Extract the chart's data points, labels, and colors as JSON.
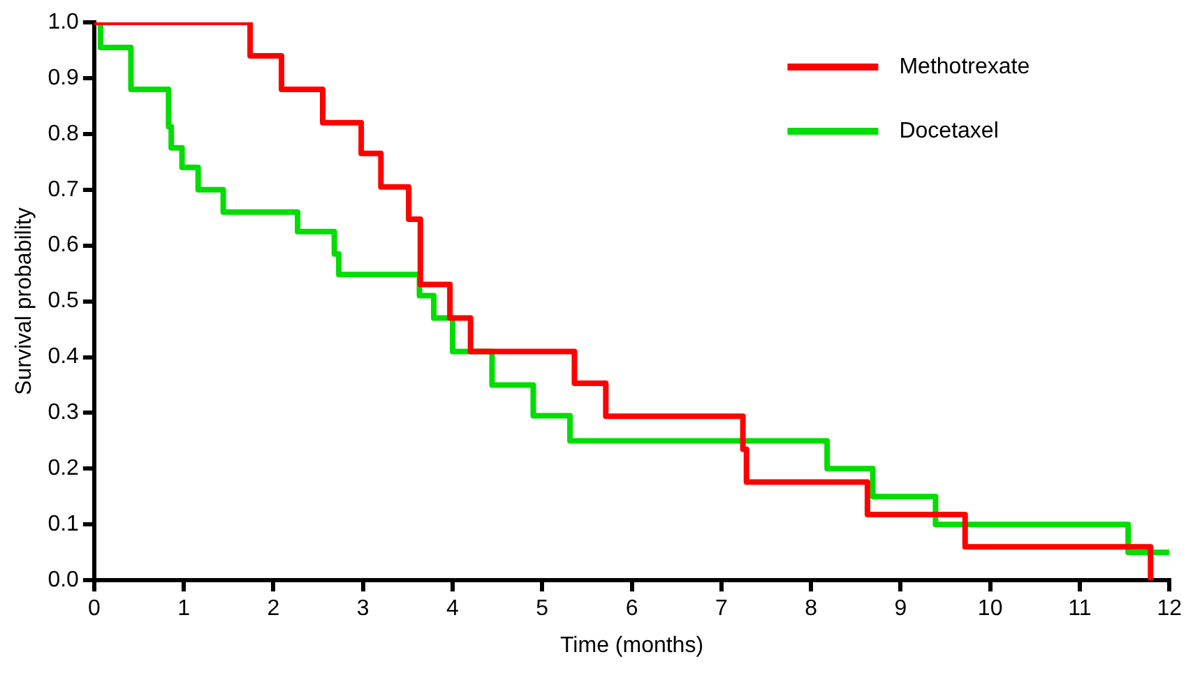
{
  "chart_data": {
    "type": "step",
    "xlabel": "Time (months)",
    "ylabel": "Survival probability",
    "xlim": [
      0,
      12
    ],
    "xticks": [
      0,
      1,
      2,
      3,
      4,
      5,
      6,
      7,
      8,
      9,
      10,
      11,
      12
    ],
    "ylim": [
      0,
      1
    ],
    "yticks": [
      {
        "value": 0,
        "label": "0.0"
      },
      {
        "value": 0.1,
        "label": "0.1"
      },
      {
        "value": 0.2,
        "label": "0.2"
      },
      {
        "value": 0.3,
        "label": "0.3"
      },
      {
        "value": 0.4,
        "label": "0.4"
      },
      {
        "value": 0.5,
        "label": "0.5"
      },
      {
        "value": 0.6,
        "label": "0.6"
      },
      {
        "value": 0.7,
        "label": "0.7"
      },
      {
        "value": 0.8,
        "label": "0.8"
      },
      {
        "value": 0.9,
        "label": "0.9"
      },
      {
        "value": 1,
        "label": "1.0"
      }
    ],
    "grid": false,
    "legend": "top right",
    "marker": "none",
    "line_style": "solid",
    "series": [
      {
        "name": "Methotrexate",
        "color": "#ff0000",
        "x": [
          0,
          1.74,
          2.09,
          2.55,
          2.98,
          3.2,
          3.51,
          3.64,
          3.97,
          4.2,
          5.36,
          5.71,
          7.24,
          7.28,
          8.63,
          9.72,
          11.79
        ],
        "values": [
          1,
          0.94,
          0.88,
          0.82,
          0.765,
          0.705,
          0.647,
          0.53,
          0.47,
          0.41,
          0.353,
          0.294,
          0.235,
          0.176,
          0.118,
          0.06,
          0
        ]
      },
      {
        "name": "Docetaxel",
        "color": "#00dd00",
        "x": [
          0,
          0.07,
          0.41,
          0.83,
          0.86,
          0.98,
          1.16,
          1.44,
          2.27,
          2.68,
          2.73,
          3.63,
          3.79,
          4.0,
          4.44,
          4.9,
          5.31,
          8.18,
          8.69,
          9.39,
          11.54,
          12
        ],
        "values": [
          1,
          0.955,
          0.88,
          0.813,
          0.775,
          0.74,
          0.7,
          0.66,
          0.625,
          0.585,
          0.548,
          0.51,
          0.47,
          0.41,
          0.35,
          0.295,
          0.25,
          0.2,
          0.15,
          0.1,
          0.05,
          0.05
        ]
      }
    ]
  }
}
